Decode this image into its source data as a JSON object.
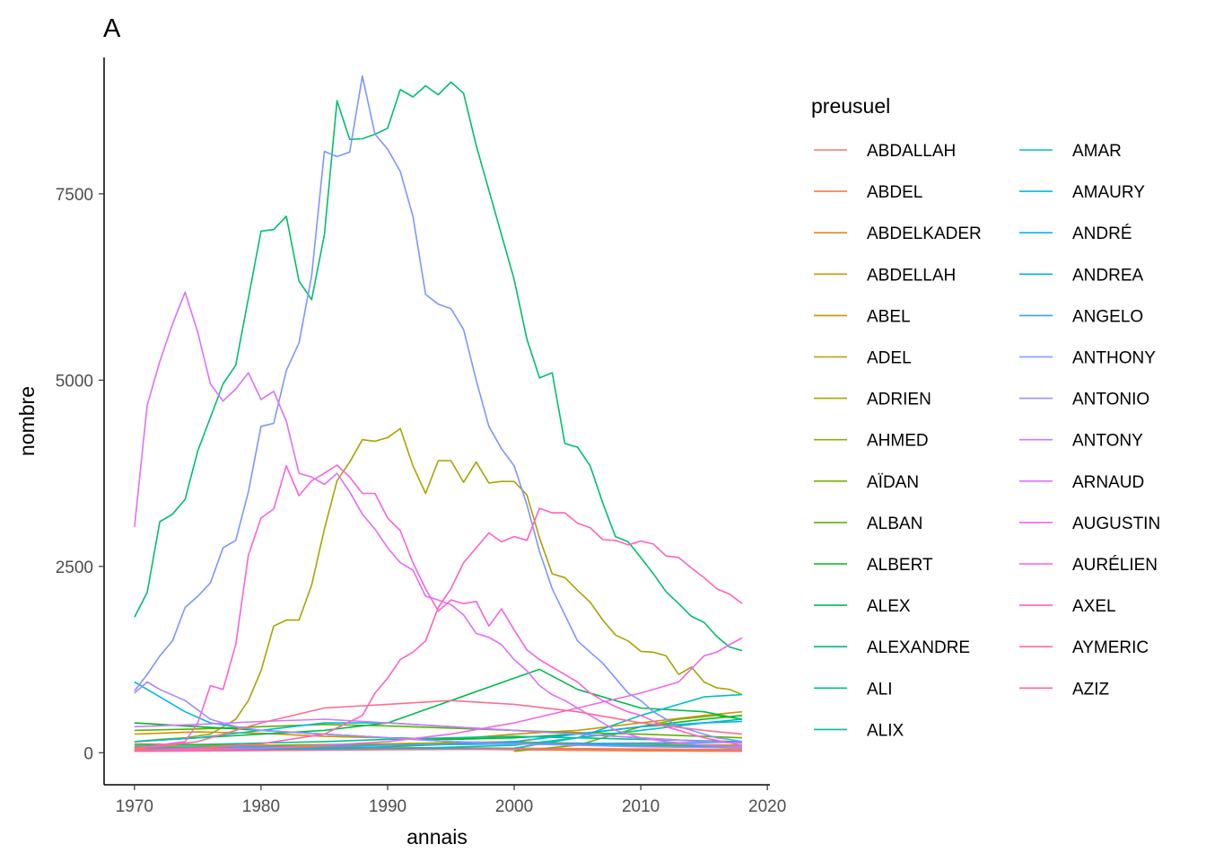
{
  "chart_data": {
    "type": "line",
    "tag": "A",
    "xlabel": "annais",
    "ylabel": "nombre",
    "xlim": [
      1967.6,
      2020.2
    ],
    "ylim": [
      -430,
      9330
    ],
    "x_ticks": [
      1970,
      1980,
      1990,
      2000,
      2010,
      2020
    ],
    "y_ticks": [
      0,
      2500,
      5000,
      7500
    ],
    "x_tick_labels": [
      "1970",
      "1980",
      "1990",
      "2000",
      "2010",
      "2020"
    ],
    "y_tick_labels": [
      "0",
      "2500",
      "5000",
      "7500"
    ],
    "grid": false,
    "legend_title": "preusuel",
    "legend_position": "right",
    "series": [
      {
        "name": "ABDALLAH",
        "color": "#F8766D",
        "x": [
          1970,
          1980,
          1990,
          2000,
          2010,
          2018
        ],
        "y": [
          40,
          45,
          50,
          55,
          45,
          40
        ]
      },
      {
        "name": "ABDEL",
        "color": "#F07F4D",
        "x": [
          1970,
          1980,
          1990,
          2000,
          2010,
          2018
        ],
        "y": [
          60,
          80,
          60,
          40,
          25,
          20
        ]
      },
      {
        "name": "ABDELKADER",
        "color": "#E6861A",
        "x": [
          1970,
          1980,
          1990,
          2000,
          2010,
          2018
        ],
        "y": [
          120,
          100,
          70,
          50,
          30,
          20
        ]
      },
      {
        "name": "ABDELLAH",
        "color": "#DB8E00",
        "x": [
          1970,
          1980,
          1990,
          2000,
          2010,
          2018
        ],
        "y": [
          50,
          60,
          70,
          60,
          50,
          40
        ]
      },
      {
        "name": "ABEL",
        "color": "#CD9600",
        "x": [
          1970,
          1975,
          1980,
          1985,
          1990,
          1995,
          2000,
          2005,
          2010,
          2015,
          2018
        ],
        "y": [
          250,
          280,
          260,
          220,
          200,
          180,
          250,
          300,
          400,
          500,
          550
        ]
      },
      {
        "name": "ADEL",
        "color": "#BE9C00",
        "x": [
          1970,
          1980,
          1990,
          2000,
          2010,
          2018
        ],
        "y": [
          30,
          60,
          120,
          150,
          90,
          60
        ]
      },
      {
        "name": "ADRIEN",
        "color": "#A9A400",
        "x": [
          1970,
          1972,
          1974,
          1976,
          1977,
          1978,
          1979,
          1980,
          1981,
          1982,
          1983,
          1984,
          1985,
          1986,
          1987,
          1988,
          1989,
          1990,
          1991,
          1992,
          1993,
          1994,
          1995,
          1996,
          1997,
          1998,
          1999,
          2000,
          2001,
          2002,
          2003,
          2004,
          2005,
          2006,
          2007,
          2008,
          2009,
          2010,
          2011,
          2012,
          2013,
          2014,
          2015,
          2016,
          2017,
          2018
        ],
        "y": [
          150,
          180,
          200,
          250,
          350,
          450,
          700,
          1100,
          1700,
          1780,
          1780,
          2250,
          3000,
          3650,
          3900,
          4200,
          4180,
          4230,
          4350,
          3850,
          3480,
          3920,
          3920,
          3630,
          3900,
          3620,
          3640,
          3640,
          3460,
          2880,
          2400,
          2350,
          2180,
          2020,
          1780,
          1580,
          1500,
          1360,
          1350,
          1300,
          1050,
          1150,
          950,
          870,
          850,
          780
        ]
      },
      {
        "name": "AHMED",
        "color": "#94AA00",
        "x": [
          1970,
          1980,
          1990,
          2000,
          2010,
          2018
        ],
        "y": [
          80,
          100,
          120,
          140,
          120,
          100
        ]
      },
      {
        "name": "AÏDAN",
        "color": "#7CAE00",
        "x": [
          2000,
          2005,
          2008,
          2010,
          2013,
          2016,
          2018
        ],
        "y": [
          20,
          100,
          250,
          350,
          450,
          500,
          450
        ]
      },
      {
        "name": "ALBAN",
        "color": "#5BB300",
        "x": [
          1970,
          1975,
          1980,
          1985,
          1990,
          1995,
          2000,
          2005,
          2010,
          2015,
          2018
        ],
        "y": [
          300,
          320,
          350,
          380,
          360,
          330,
          300,
          270,
          250,
          220,
          200
        ]
      },
      {
        "name": "ALBERT",
        "color": "#00B81F",
        "x": [
          1970,
          1975,
          1980,
          1985,
          1990,
          1995,
          2000,
          2005,
          2010,
          2015,
          2018
        ],
        "y": [
          400,
          350,
          300,
          250,
          200,
          180,
          200,
          250,
          350,
          450,
          500
        ]
      },
      {
        "name": "ALEX",
        "color": "#00BB4E",
        "x": [
          1970,
          1975,
          1980,
          1985,
          1990,
          1995,
          2000,
          2002,
          2005,
          2010,
          2015,
          2018
        ],
        "y": [
          150,
          200,
          250,
          300,
          400,
          700,
          1000,
          1120,
          850,
          600,
          550,
          450
        ]
      },
      {
        "name": "ALEXANDRE",
        "color": "#00BE70",
        "x": [
          1970,
          1971,
          1972,
          1973,
          1974,
          1975,
          1976,
          1977,
          1978,
          1979,
          1980,
          1981,
          1982,
          1983,
          1984,
          1985,
          1986,
          1987,
          1988,
          1989,
          1990,
          1991,
          1992,
          1993,
          1994,
          1995,
          1996,
          1997,
          1998,
          1999,
          2000,
          2001,
          2002,
          2003,
          2004,
          2005,
          2006,
          2007,
          2008,
          2009,
          2010,
          2011,
          2012,
          2013,
          2014,
          2015,
          2016,
          2017,
          2018
        ],
        "y": [
          1820,
          2150,
          3100,
          3200,
          3400,
          4050,
          4500,
          4950,
          5200,
          6100,
          7000,
          7020,
          7200,
          6330,
          6080,
          6950,
          8750,
          8230,
          8240,
          8300,
          8380,
          8900,
          8800,
          8950,
          8830,
          9000,
          8850,
          8150,
          7550,
          6950,
          6350,
          5550,
          5030,
          5100,
          4150,
          4100,
          3850,
          3350,
          2900,
          2830,
          2620,
          2400,
          2160,
          2000,
          1830,
          1750,
          1560,
          1420,
          1370
        ]
      },
      {
        "name": "ALI",
        "color": "#00C08D",
        "x": [
          1970,
          1975,
          1980,
          1985,
          1990,
          1995,
          2000,
          2005,
          2010,
          2015,
          2018
        ],
        "y": [
          100,
          110,
          130,
          150,
          180,
          200,
          220,
          200,
          180,
          160,
          150
        ]
      },
      {
        "name": "ALIX",
        "color": "#00C1A7",
        "x": [
          1970,
          1980,
          1990,
          2000,
          2005,
          2010,
          2015,
          2018
        ],
        "y": [
          20,
          30,
          50,
          100,
          200,
          300,
          400,
          450
        ]
      },
      {
        "name": "AMAR",
        "color": "#00BFC4",
        "x": [
          1970,
          1980,
          1990,
          2000,
          2005,
          2010,
          2015,
          2018
        ],
        "y": [
          30,
          40,
          50,
          60,
          200,
          500,
          750,
          780
        ]
      },
      {
        "name": "AMAURY",
        "color": "#00BBDA",
        "x": [
          1970,
          1975,
          1980,
          1985,
          1990,
          1995,
          2000,
          2005,
          2010,
          2015,
          2018
        ],
        "y": [
          150,
          200,
          300,
          400,
          400,
          350,
          300,
          250,
          200,
          150,
          130
        ]
      },
      {
        "name": "ANDRÉ",
        "color": "#00B7E9",
        "x": [
          1970,
          1972,
          1974,
          1976,
          1978,
          1980,
          1985,
          1990,
          1995,
          2000,
          2005,
          2010,
          2015,
          2018
        ],
        "y": [
          950,
          750,
          550,
          400,
          350,
          300,
          250,
          200,
          150,
          130,
          110,
          100,
          90,
          80
        ]
      },
      {
        "name": "ANDREA",
        "color": "#00B0F6",
        "x": [
          1970,
          1980,
          1990,
          2000,
          2005,
          2010,
          2015,
          2018
        ],
        "y": [
          20,
          40,
          80,
          150,
          250,
          350,
          400,
          420
        ]
      },
      {
        "name": "ANGELO",
        "color": "#35A2FF",
        "x": [
          1970,
          1980,
          1990,
          2000,
          2010,
          2018
        ],
        "y": [
          60,
          80,
          100,
          120,
          130,
          140
        ]
      },
      {
        "name": "ANTHONY",
        "color": "#7D96FF",
        "x": [
          1970,
          1971,
          1972,
          1973,
          1974,
          1975,
          1976,
          1977,
          1978,
          1979,
          1980,
          1981,
          1982,
          1983,
          1984,
          1985,
          1986,
          1987,
          1988,
          1989,
          1990,
          1991,
          1992,
          1993,
          1994,
          1995,
          1996,
          1997,
          1998,
          1999,
          2000,
          2001,
          2002,
          2003,
          2004,
          2005,
          2006,
          2007,
          2008,
          2009,
          2010,
          2011,
          2012,
          2013,
          2014,
          2015,
          2016,
          2017,
          2018
        ],
        "y": [
          830,
          1050,
          1300,
          1500,
          1950,
          2100,
          2280,
          2750,
          2850,
          3500,
          4380,
          4420,
          5130,
          5500,
          6400,
          8070,
          8000,
          8060,
          9080,
          8300,
          8100,
          7800,
          7200,
          6150,
          6020,
          5960,
          5680,
          5000,
          4380,
          4080,
          3850,
          3330,
          2700,
          2200,
          1850,
          1500,
          1350,
          1200,
          1000,
          800,
          700,
          550,
          450,
          350,
          300,
          250,
          200,
          180,
          150
        ]
      },
      {
        "name": "ANTONIO",
        "color": "#A58AFF",
        "x": [
          1970,
          1971,
          1972,
          1974,
          1976,
          1978,
          1980,
          1985,
          1990,
          1995,
          2000,
          2005,
          2010,
          2015,
          2018
        ],
        "y": [
          800,
          950,
          850,
          700,
          450,
          350,
          300,
          250,
          200,
          150,
          120,
          100,
          80,
          70,
          60
        ]
      },
      {
        "name": "ANTONY",
        "color": "#C77CFF",
        "x": [
          1970,
          1975,
          1980,
          1985,
          1990,
          1995,
          2000,
          2005,
          2010,
          2015,
          2018
        ],
        "y": [
          350,
          380,
          420,
          450,
          400,
          350,
          300,
          250,
          200,
          150,
          130
        ]
      },
      {
        "name": "ARNAUD",
        "color": "#DF70F8",
        "x": [
          1970,
          1971,
          1972,
          1973,
          1974,
          1975,
          1976,
          1977,
          1978,
          1979,
          1980,
          1981,
          1982,
          1983,
          1984,
          1985,
          1986,
          1987,
          1988,
          1989,
          1990,
          1991,
          1992,
          1993,
          1994,
          1995,
          1996,
          1997,
          1998,
          1999,
          2000,
          2001,
          2002,
          2003,
          2004,
          2005,
          2006,
          2007,
          2008,
          2009,
          2010,
          2012,
          2015,
          2018
        ],
        "y": [
          3030,
          4660,
          5250,
          5750,
          6180,
          5640,
          4950,
          4720,
          4880,
          5100,
          4740,
          4850,
          4450,
          3750,
          3700,
          3600,
          3750,
          3500,
          3200,
          3000,
          2750,
          2550,
          2450,
          2100,
          2050,
          1990,
          1850,
          1600,
          1550,
          1450,
          1250,
          1100,
          900,
          780,
          700,
          600,
          500,
          400,
          300,
          250,
          200,
          150,
          100,
          80
        ]
      },
      {
        "name": "AUGUSTIN",
        "color": "#F066EA",
        "x": [
          1970,
          1975,
          1980,
          1985,
          1990,
          1995,
          2000,
          2005,
          2010,
          2013,
          2015,
          2016,
          2017,
          2018
        ],
        "y": [
          30,
          40,
          60,
          100,
          150,
          250,
          400,
          600,
          800,
          950,
          1300,
          1350,
          1450,
          1540
        ]
      },
      {
        "name": "AURÉLIEN",
        "color": "#FA62DB",
        "x": [
          1970,
          1974,
          1975,
          1976,
          1977,
          1978,
          1979,
          1980,
          1981,
          1982,
          1983,
          1984,
          1985,
          1986,
          1987,
          1988,
          1989,
          1990,
          1991,
          1992,
          1993,
          1994,
          1995,
          1996,
          1997,
          1998,
          1999,
          2000,
          2001,
          2002,
          2003,
          2004,
          2005,
          2006,
          2007,
          2008,
          2009,
          2010,
          2012,
          2015,
          2018
        ],
        "y": [
          60,
          150,
          400,
          900,
          850,
          1450,
          2650,
          3150,
          3270,
          3850,
          3450,
          3650,
          3750,
          3860,
          3700,
          3480,
          3480,
          3150,
          2980,
          2550,
          2200,
          1900,
          2050,
          2000,
          2030,
          1700,
          1930,
          1650,
          1380,
          1250,
          1150,
          1050,
          950,
          800,
          700,
          620,
          550,
          500,
          350,
          200,
          100
        ]
      },
      {
        "name": "AXEL",
        "color": "#FF62BC",
        "x": [
          1970,
          1975,
          1980,
          1985,
          1988,
          1989,
          1990,
          1991,
          1992,
          1993,
          1994,
          1995,
          1996,
          1997,
          1998,
          1999,
          2000,
          2001,
          2002,
          2003,
          2004,
          2005,
          2006,
          2007,
          2008,
          2009,
          2010,
          2011,
          2012,
          2013,
          2014,
          2015,
          2016,
          2017,
          2018
        ],
        "y": [
          30,
          60,
          120,
          250,
          500,
          800,
          1000,
          1250,
          1350,
          1500,
          1950,
          2200,
          2550,
          2750,
          2950,
          2830,
          2900,
          2850,
          3280,
          3220,
          3220,
          3080,
          3020,
          2860,
          2850,
          2790,
          2840,
          2800,
          2640,
          2620,
          2480,
          2350,
          2200,
          2130,
          2000
        ]
      },
      {
        "name": "AYMERIC",
        "color": "#FF6C91",
        "x": [
          1970,
          1975,
          1980,
          1985,
          1990,
          1995,
          2000,
          2005,
          2010,
          2015,
          2018
        ],
        "y": [
          50,
          150,
          400,
          600,
          650,
          700,
          650,
          550,
          400,
          300,
          250
        ]
      },
      {
        "name": "AZIZ",
        "color": "#FF6C91",
        "x": [
          1970,
          1980,
          1990,
          2000,
          2010,
          2018
        ],
        "y": [
          20,
          30,
          40,
          50,
          40,
          30
        ]
      }
    ]
  }
}
